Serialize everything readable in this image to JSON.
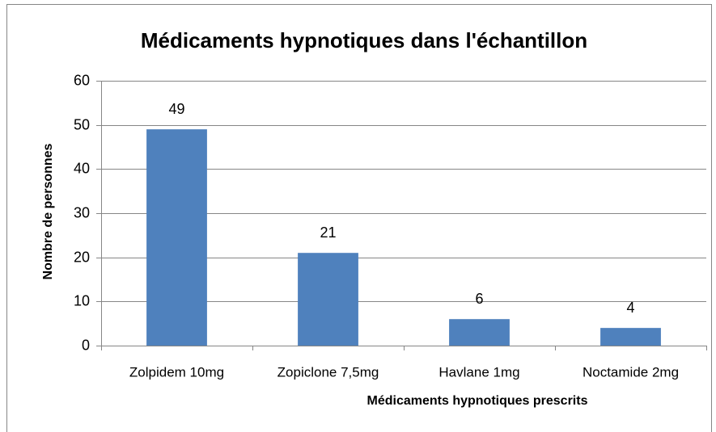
{
  "chart_data": {
    "type": "bar",
    "title": "Médicaments hypnotiques dans l'échantillon",
    "x_label": "Médicaments hypnotiques prescrits",
    "y_label": "Nombre de personnes",
    "categories": [
      "Zolpidem 10mg",
      "Zopiclone 7,5mg",
      "Havlane 1mg",
      "Noctamide 2mg"
    ],
    "values": [
      49,
      21,
      6,
      4
    ],
    "color": "#4f81bd",
    "ylim": [
      0,
      60
    ],
    "yticks": [
      0,
      10,
      20,
      30,
      40,
      50,
      60
    ],
    "grid": true
  }
}
